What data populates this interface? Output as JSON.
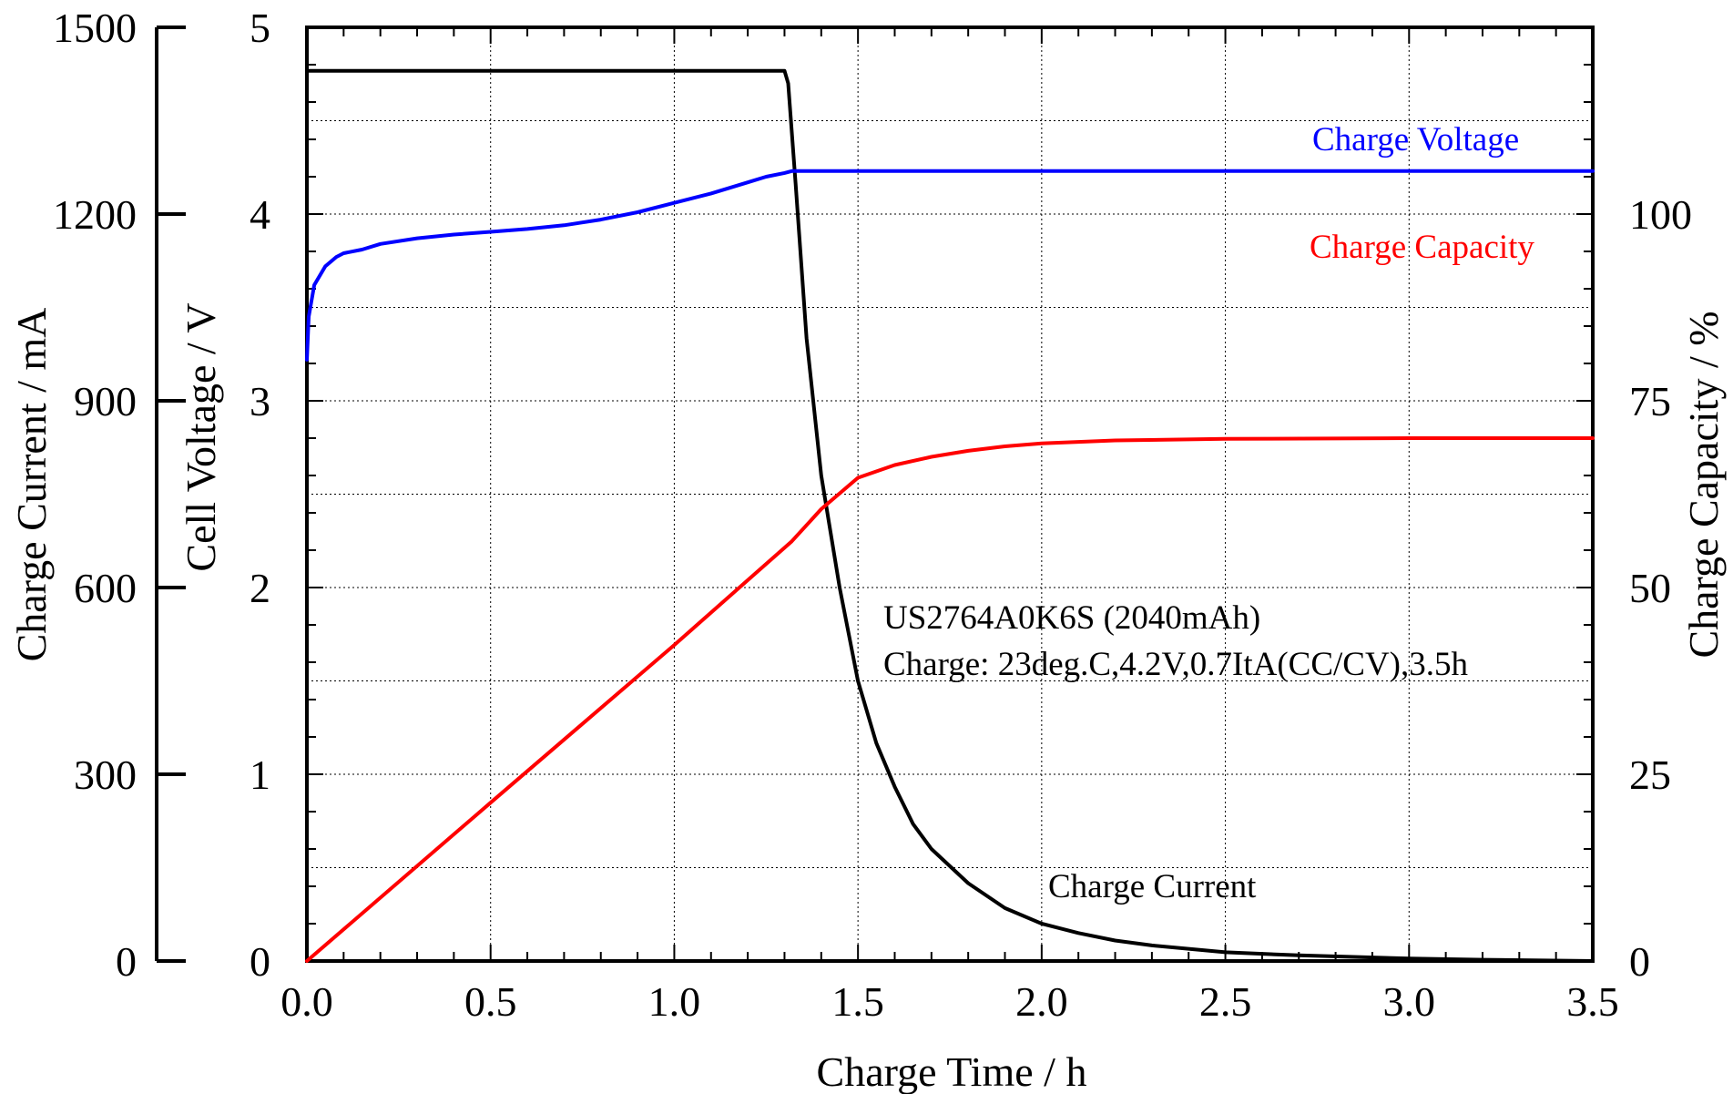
{
  "chart_data": {
    "type": "line",
    "title": "",
    "xlabel": "Charge Time / h",
    "ylabel_current": "Charge Current / mA",
    "ylabel_voltage": "Cell Voltage / V",
    "ylabel_capacity": "Charge Capacity / %",
    "xlim": [
      0,
      3.5
    ],
    "ylim_current": [
      0,
      1500
    ],
    "ylim_voltage": [
      0,
      5
    ],
    "ylim_capacity": [
      0,
      125
    ],
    "x_ticks": [
      "0.0",
      "0.5",
      "1.0",
      "1.5",
      "2.0",
      "2.5",
      "3.0",
      "3.5"
    ],
    "y_ticks_current": [
      "0",
      "300",
      "600",
      "900",
      "1200",
      "1500"
    ],
    "y_ticks_voltage": [
      "0",
      "1",
      "2",
      "3",
      "4",
      "5"
    ],
    "y_ticks_capacity": [
      "0",
      "25",
      "50",
      "75",
      "100"
    ],
    "grid": true,
    "annotations": {
      "line1": "US2764A0K6S (2040mAh)",
      "line2": "Charge: 23deg.C,4.2V,0.7ItA(CC/CV),3.5h"
    },
    "series": [
      {
        "name": "Charge Current",
        "axis": "current",
        "color": "#000000",
        "x": [
          0.0,
          1.3,
          1.31,
          1.33,
          1.36,
          1.4,
          1.45,
          1.5,
          1.55,
          1.6,
          1.65,
          1.7,
          1.8,
          1.9,
          2.0,
          2.1,
          2.2,
          2.3,
          2.5,
          2.7,
          3.0,
          3.2,
          3.5
        ],
        "y": [
          1430,
          1430,
          1410,
          1250,
          1000,
          780,
          600,
          450,
          350,
          280,
          220,
          180,
          125,
          85,
          60,
          45,
          33,
          25,
          14,
          9,
          4,
          2,
          0
        ]
      },
      {
        "name": "Charge Voltage",
        "axis": "voltage",
        "color": "#0000ff",
        "x": [
          0.0,
          0.005,
          0.02,
          0.05,
          0.08,
          0.1,
          0.15,
          0.2,
          0.3,
          0.4,
          0.5,
          0.6,
          0.7,
          0.8,
          0.9,
          1.0,
          1.1,
          1.2,
          1.25,
          1.3,
          1.32,
          3.5
        ],
        "y": [
          3.22,
          3.45,
          3.62,
          3.72,
          3.77,
          3.79,
          3.81,
          3.84,
          3.87,
          3.89,
          3.905,
          3.92,
          3.94,
          3.97,
          4.01,
          4.06,
          4.11,
          4.17,
          4.2,
          4.22,
          4.23,
          4.23
        ]
      },
      {
        "name": "Charge Capacity",
        "axis": "capacity",
        "color": "#ff0000",
        "x": [
          0.0,
          0.5,
          1.0,
          1.32,
          1.4,
          1.5,
          1.6,
          1.7,
          1.8,
          1.9,
          2.0,
          2.2,
          2.5,
          3.0,
          3.5
        ],
        "y": [
          0,
          21.2,
          42.3,
          56.2,
          60.5,
          64.7,
          66.4,
          67.5,
          68.3,
          68.9,
          69.3,
          69.7,
          69.9,
          70.0,
          70.0
        ]
      }
    ]
  },
  "colors": {
    "current": "#000000",
    "voltage": "#0000ff",
    "capacity": "#ff0000"
  }
}
